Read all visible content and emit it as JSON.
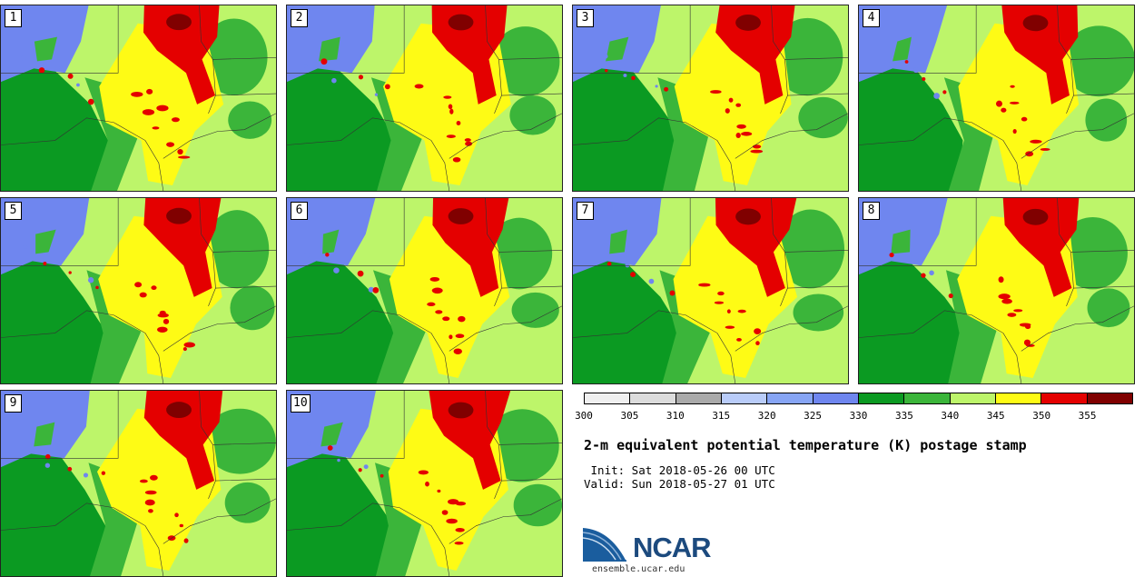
{
  "title": "2-m equivalent potential temperature (K) postage stamp",
  "init_text": " Init: Sat 2018-05-26 00 UTC",
  "valid_text": "Valid: Sun 2018-05-27 01 UTC",
  "logo": {
    "name": "NCAR",
    "site": "ensemble.ucar.edu"
  },
  "members": [
    "1",
    "2",
    "3",
    "4",
    "5",
    "6",
    "7",
    "8",
    "9",
    "10"
  ],
  "colorbar": {
    "tick_labels": [
      "300",
      "305",
      "310",
      "315",
      "320",
      "325",
      "330",
      "335",
      "340",
      "345",
      "350",
      "355"
    ],
    "colors": [
      "#f0f0f0",
      "#dcdcdc",
      "#aaaaaa",
      "#b9ccf9",
      "#87a5f5",
      "#6f86ef",
      "#0b9a22",
      "#3bb53a",
      "#bdf56a",
      "#fefb15",
      "#e40000",
      "#800000"
    ]
  },
  "map_colors": {
    "base": "#bdf56a",
    "dark_green": "#0b9a22",
    "mid_green": "#3bb53a",
    "blue": "#6f86ef",
    "yellow": "#fefb15",
    "red": "#e40000",
    "dark_red": "#800000"
  }
}
